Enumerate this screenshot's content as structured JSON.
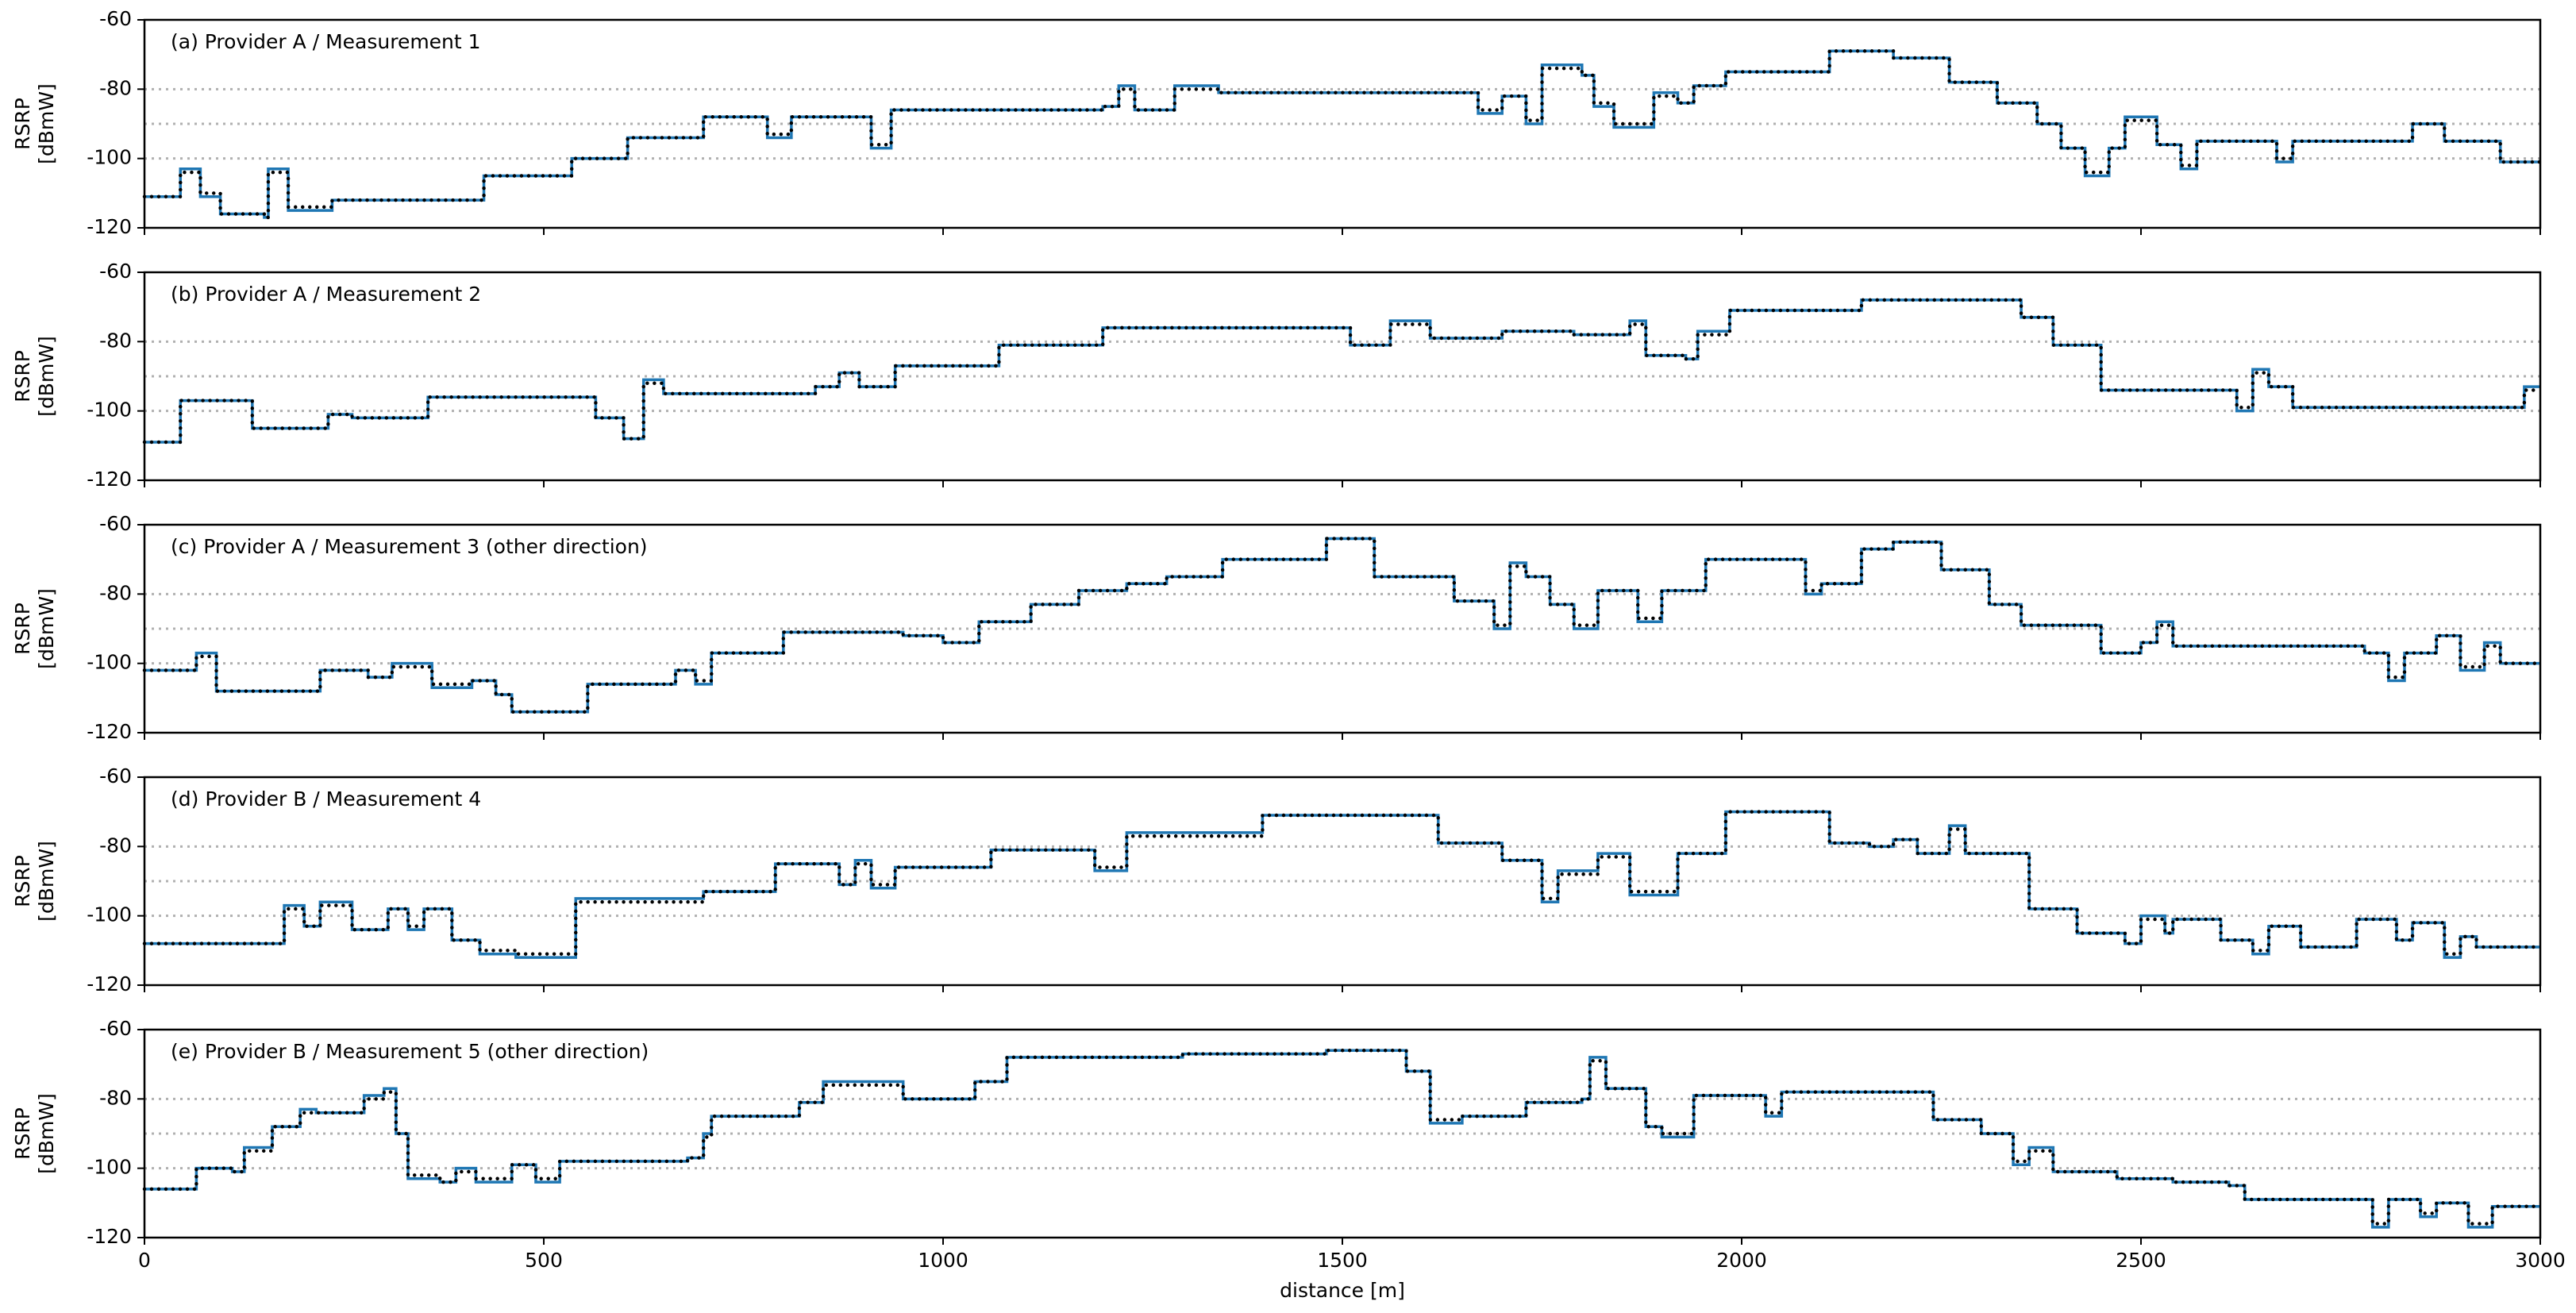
{
  "chart_data": [
    {
      "type": "line",
      "title": "(a) Provider A / Measurement 1",
      "ylabel": [
        "RSRP",
        "[dBmW]"
      ],
      "xlim": [
        0,
        3000
      ],
      "ylim": [
        -120,
        -60
      ],
      "xticks": [
        0,
        500,
        1000,
        1500,
        2000,
        2500,
        3000
      ],
      "yticks": [
        -60,
        -80,
        -100,
        -120
      ],
      "hlines": [
        -80,
        -90,
        -100
      ],
      "xticklabels": false,
      "x": [
        0,
        45,
        70,
        95,
        150,
        155,
        180,
        235,
        425,
        535,
        605,
        700,
        780,
        810,
        910,
        935,
        1200,
        1220,
        1240,
        1290,
        1345,
        1660,
        1670,
        1700,
        1730,
        1750,
        1800,
        1815,
        1840,
        1890,
        1920,
        1940,
        1980,
        2110,
        2190,
        2260,
        2320,
        2370,
        2400,
        2430,
        2460,
        2480,
        2520,
        2550,
        2570,
        2670,
        2690,
        2840,
        2880,
        2950,
        3000
      ],
      "series": [
        {
          "color": "#1f77b4",
          "style": "solid",
          "values": [
            -111,
            -103,
            -111,
            -116,
            -117,
            -103,
            -115,
            -112,
            -105,
            -100,
            -94,
            -88,
            -94,
            -88,
            -97,
            -86,
            -85,
            -79,
            -86,
            -79,
            -81,
            -81,
            -87,
            -82,
            -90,
            -73,
            -76,
            -85,
            -91,
            -81,
            -84,
            -79,
            -75,
            -69,
            -71,
            -78,
            -84,
            -90,
            -97,
            -105,
            -97,
            -88,
            -96,
            -103,
            -95,
            -101,
            -95,
            -90,
            -95,
            -101,
            -101
          ]
        },
        {
          "color": "#000000",
          "style": "dotted",
          "values": [
            -111,
            -104,
            -110,
            -116,
            -117,
            -104,
            -114,
            -112,
            -105,
            -100,
            -94,
            -88,
            -93,
            -88,
            -96,
            -86,
            -85,
            -80,
            -86,
            -80,
            -81,
            -81,
            -86,
            -82,
            -89,
            -74,
            -76,
            -84,
            -90,
            -82,
            -84,
            -79,
            -75,
            -69,
            -71,
            -78,
            -84,
            -90,
            -97,
            -104,
            -97,
            -89,
            -96,
            -102,
            -95,
            -100,
            -95,
            -90,
            -95,
            -101,
            -101
          ]
        }
      ]
    },
    {
      "type": "line",
      "title": "(b) Provider A / Measurement 2",
      "ylabel": [
        "RSRP",
        "[dBmW]"
      ],
      "xlim": [
        0,
        3000
      ],
      "ylim": [
        -120,
        -60
      ],
      "xticks": [
        0,
        500,
        1000,
        1500,
        2000,
        2500,
        3000
      ],
      "yticks": [
        -60,
        -80,
        -100,
        -120
      ],
      "hlines": [
        -80,
        -90,
        -100
      ],
      "xticklabels": false,
      "x": [
        0,
        45,
        135,
        230,
        260,
        355,
        565,
        600,
        625,
        650,
        840,
        870,
        895,
        940,
        1070,
        1200,
        1510,
        1560,
        1610,
        1700,
        1790,
        1860,
        1880,
        1930,
        1945,
        1985,
        2150,
        2350,
        2390,
        2450,
        2590,
        2620,
        2640,
        2660,
        2690,
        2960,
        2980,
        3000
      ],
      "series": [
        {
          "color": "#1f77b4",
          "style": "solid",
          "values": [
            -109,
            -97,
            -105,
            -101,
            -102,
            -96,
            -102,
            -108,
            -91,
            -95,
            -93,
            -89,
            -93,
            -87,
            -81,
            -76,
            -81,
            -74,
            -79,
            -77,
            -78,
            -74,
            -84,
            -85,
            -77,
            -71,
            -68,
            -73,
            -81,
            -94,
            -94,
            -100,
            -88,
            -93,
            -99,
            -99,
            -93,
            -93
          ]
        },
        {
          "color": "#000000",
          "style": "dotted",
          "values": [
            -109,
            -97,
            -105,
            -101,
            -102,
            -96,
            -102,
            -108,
            -92,
            -95,
            -93,
            -89,
            -93,
            -87,
            -81,
            -76,
            -81,
            -75,
            -79,
            -77,
            -78,
            -75,
            -84,
            -85,
            -78,
            -71,
            -68,
            -73,
            -81,
            -94,
            -94,
            -99,
            -89,
            -93,
            -99,
            -99,
            -94,
            -94
          ]
        }
      ]
    },
    {
      "type": "line",
      "title": "(c) Provider A / Measurement 3 (other direction)",
      "ylabel": [
        "RSRP",
        "[dBmW]"
      ],
      "xlim": [
        0,
        3000
      ],
      "ylim": [
        -120,
        -60
      ],
      "xticks": [
        0,
        500,
        1000,
        1500,
        2000,
        2500,
        3000
      ],
      "yticks": [
        -60,
        -80,
        -100,
        -120
      ],
      "hlines": [
        -80,
        -90,
        -100
      ],
      "xticklabels": false,
      "x": [
        0,
        65,
        90,
        220,
        280,
        310,
        360,
        410,
        440,
        460,
        555,
        665,
        690,
        710,
        800,
        950,
        1000,
        1045,
        1110,
        1170,
        1230,
        1280,
        1350,
        1480,
        1540,
        1640,
        1690,
        1710,
        1730,
        1760,
        1790,
        1820,
        1870,
        1900,
        1955,
        2080,
        2100,
        2150,
        2190,
        2250,
        2310,
        2350,
        2450,
        2500,
        2520,
        2540,
        2780,
        2810,
        2830,
        2870,
        2900,
        2930,
        2950,
        3000
      ],
      "series": [
        {
          "color": "#1f77b4",
          "style": "solid",
          "values": [
            -102,
            -97,
            -108,
            -102,
            -104,
            -100,
            -107,
            -105,
            -109,
            -114,
            -106,
            -102,
            -106,
            -97,
            -91,
            -92,
            -94,
            -88,
            -83,
            -79,
            -77,
            -75,
            -70,
            -64,
            -75,
            -82,
            -90,
            -71,
            -75,
            -83,
            -90,
            -79,
            -88,
            -79,
            -70,
            -80,
            -77,
            -67,
            -65,
            -73,
            -83,
            -89,
            -97,
            -94,
            -88,
            -95,
            -97,
            -105,
            -97,
            -92,
            -102,
            -94,
            -100,
            -100
          ]
        },
        {
          "color": "#000000",
          "style": "dotted",
          "values": [
            -102,
            -98,
            -108,
            -102,
            -104,
            -101,
            -106,
            -105,
            -109,
            -114,
            -106,
            -102,
            -105,
            -97,
            -91,
            -92,
            -94,
            -88,
            -83,
            -79,
            -77,
            -75,
            -70,
            -64,
            -75,
            -82,
            -89,
            -72,
            -75,
            -83,
            -89,
            -79,
            -87,
            -79,
            -70,
            -79,
            -77,
            -67,
            -65,
            -73,
            -83,
            -89,
            -97,
            -94,
            -89,
            -95,
            -97,
            -104,
            -97,
            -92,
            -101,
            -95,
            -100,
            -100
          ]
        }
      ]
    },
    {
      "type": "line",
      "title": "(d) Provider B / Measurement 4",
      "ylabel": [
        "RSRP",
        "[dBmW]"
      ],
      "xlim": [
        0,
        3000
      ],
      "ylim": [
        -120,
        -60
      ],
      "xticks": [
        0,
        500,
        1000,
        1500,
        2000,
        2500,
        3000
      ],
      "yticks": [
        -60,
        -80,
        -100,
        -120
      ],
      "hlines": [
        -80,
        -90,
        -100
      ],
      "xticklabels": false,
      "x": [
        0,
        175,
        200,
        220,
        260,
        305,
        330,
        350,
        385,
        420,
        465,
        540,
        700,
        790,
        870,
        890,
        910,
        940,
        1060,
        1190,
        1230,
        1400,
        1620,
        1700,
        1750,
        1770,
        1820,
        1860,
        1920,
        1980,
        2110,
        2160,
        2190,
        2220,
        2260,
        2280,
        2360,
        2420,
        2480,
        2500,
        2530,
        2540,
        2600,
        2640,
        2660,
        2700,
        2770,
        2820,
        2840,
        2880,
        2900,
        2920,
        3000
      ],
      "series": [
        {
          "color": "#1f77b4",
          "style": "solid",
          "values": [
            -108,
            -97,
            -103,
            -96,
            -104,
            -98,
            -104,
            -98,
            -107,
            -111,
            -112,
            -95,
            -93,
            -85,
            -91,
            -84,
            -92,
            -86,
            -81,
            -87,
            -76,
            -71,
            -79,
            -84,
            -96,
            -87,
            -82,
            -94,
            -82,
            -70,
            -79,
            -80,
            -78,
            -82,
            -74,
            -82,
            -98,
            -105,
            -108,
            -100,
            -105,
            -101,
            -107,
            -111,
            -103,
            -109,
            -101,
            -107,
            -102,
            -112,
            -106,
            -109,
            -109
          ]
        },
        {
          "color": "#000000",
          "style": "dotted",
          "values": [
            -108,
            -98,
            -103,
            -97,
            -104,
            -98,
            -103,
            -98,
            -107,
            -110,
            -111,
            -96,
            -93,
            -85,
            -91,
            -85,
            -91,
            -86,
            -81,
            -86,
            -77,
            -71,
            -79,
            -84,
            -95,
            -88,
            -83,
            -93,
            -82,
            -70,
            -79,
            -80,
            -78,
            -82,
            -75,
            -82,
            -98,
            -105,
            -108,
            -101,
            -105,
            -101,
            -107,
            -110,
            -103,
            -109,
            -101,
            -107,
            -102,
            -111,
            -106,
            -109,
            -109
          ]
        }
      ]
    },
    {
      "type": "line",
      "title": "(e) Provider B / Measurement 5 (other direction)",
      "ylabel": [
        "RSRP",
        "[dBmW]"
      ],
      "xlabel": "distance [m]",
      "xlim": [
        0,
        3000
      ],
      "ylim": [
        -120,
        -60
      ],
      "xticks": [
        0,
        500,
        1000,
        1500,
        2000,
        2500,
        3000
      ],
      "yticks": [
        -60,
        -80,
        -100,
        -120
      ],
      "hlines": [
        -80,
        -90,
        -100
      ],
      "xticklabels": true,
      "x": [
        0,
        65,
        110,
        125,
        160,
        195,
        215,
        260,
        275,
        300,
        315,
        330,
        370,
        390,
        415,
        460,
        490,
        520,
        680,
        700,
        710,
        820,
        850,
        950,
        1040,
        1080,
        1300,
        1480,
        1580,
        1610,
        1650,
        1730,
        1800,
        1810,
        1830,
        1880,
        1900,
        1940,
        2030,
        2050,
        2240,
        2300,
        2340,
        2360,
        2390,
        2470,
        2540,
        2610,
        2630,
        2790,
        2810,
        2850,
        2870,
        2910,
        2940,
        3000
      ],
      "series": [
        {
          "color": "#1f77b4",
          "style": "solid",
          "values": [
            -106,
            -100,
            -101,
            -94,
            -88,
            -83,
            -84,
            -84,
            -79,
            -77,
            -90,
            -103,
            -104,
            -100,
            -104,
            -99,
            -104,
            -98,
            -97,
            -90,
            -85,
            -81,
            -75,
            -80,
            -75,
            -68,
            -67,
            -66,
            -72,
            -87,
            -85,
            -81,
            -80,
            -68,
            -77,
            -88,
            -91,
            -79,
            -85,
            -78,
            -86,
            -90,
            -99,
            -94,
            -101,
            -103,
            -104,
            -105,
            -109,
            -117,
            -109,
            -114,
            -110,
            -117,
            -111,
            -111
          ]
        },
        {
          "color": "#000000",
          "style": "dotted",
          "values": [
            -106,
            -100,
            -101,
            -95,
            -88,
            -84,
            -84,
            -84,
            -80,
            -78,
            -90,
            -102,
            -104,
            -101,
            -103,
            -99,
            -103,
            -98,
            -97,
            -91,
            -85,
            -81,
            -76,
            -80,
            -75,
            -68,
            -67,
            -66,
            -72,
            -86,
            -85,
            -81,
            -80,
            -69,
            -77,
            -88,
            -90,
            -79,
            -84,
            -78,
            -86,
            -90,
            -98,
            -95,
            -101,
            -103,
            -104,
            -105,
            -109,
            -116,
            -109,
            -113,
            -110,
            -116,
            -111,
            -111
          ]
        }
      ]
    }
  ]
}
